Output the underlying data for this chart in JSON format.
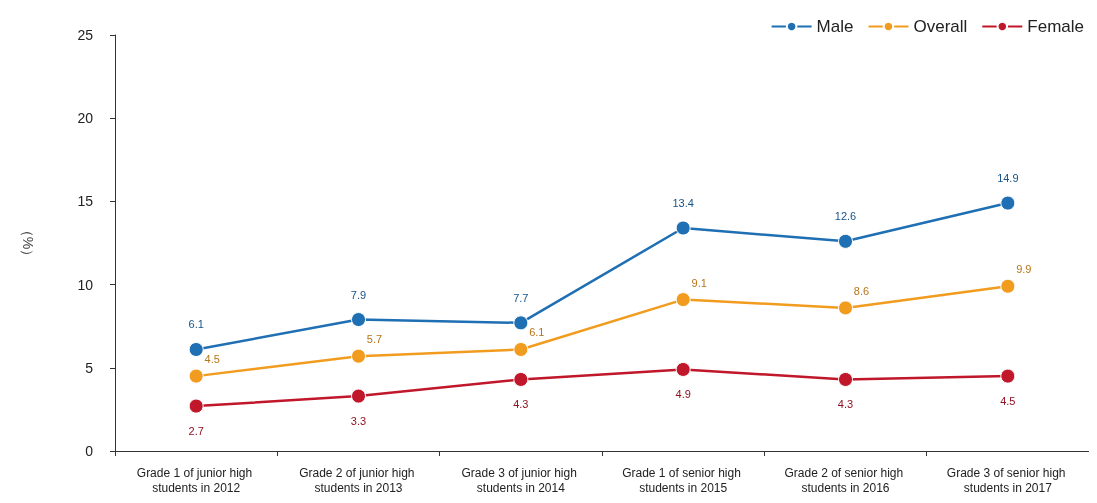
{
  "chart_data": {
    "type": "line",
    "ylabel": "（%）",
    "categories": [
      "Grade 1 of junior high students in 2012",
      "Grade 2 of junior high students in 2013",
      "Grade 3 of junior high students in 2014",
      "Grade 1 of senior high students in 2015",
      "Grade 2 of senior high students in 2016",
      "Grade 3 of senior high students in 2017"
    ],
    "series": [
      {
        "name": "Male",
        "color": "#1f6fb4",
        "values": [
          6.1,
          7.9,
          7.7,
          13.4,
          12.6,
          14.9
        ]
      },
      {
        "name": "Overall",
        "color": "#f29c1f",
        "values": [
          4.5,
          5.7,
          6.1,
          9.1,
          8.6,
          9.9
        ]
      },
      {
        "name": "Female",
        "color": "#c0172b",
        "values": [
          2.7,
          3.3,
          4.3,
          4.9,
          4.3,
          4.5
        ]
      }
    ],
    "ylim": [
      0,
      25
    ],
    "yticks": [
      0,
      5,
      10,
      15,
      20,
      25
    ],
    "grid": false,
    "legend": "top right",
    "marker": "circle",
    "line_style": "solid",
    "data_labels": true
  }
}
